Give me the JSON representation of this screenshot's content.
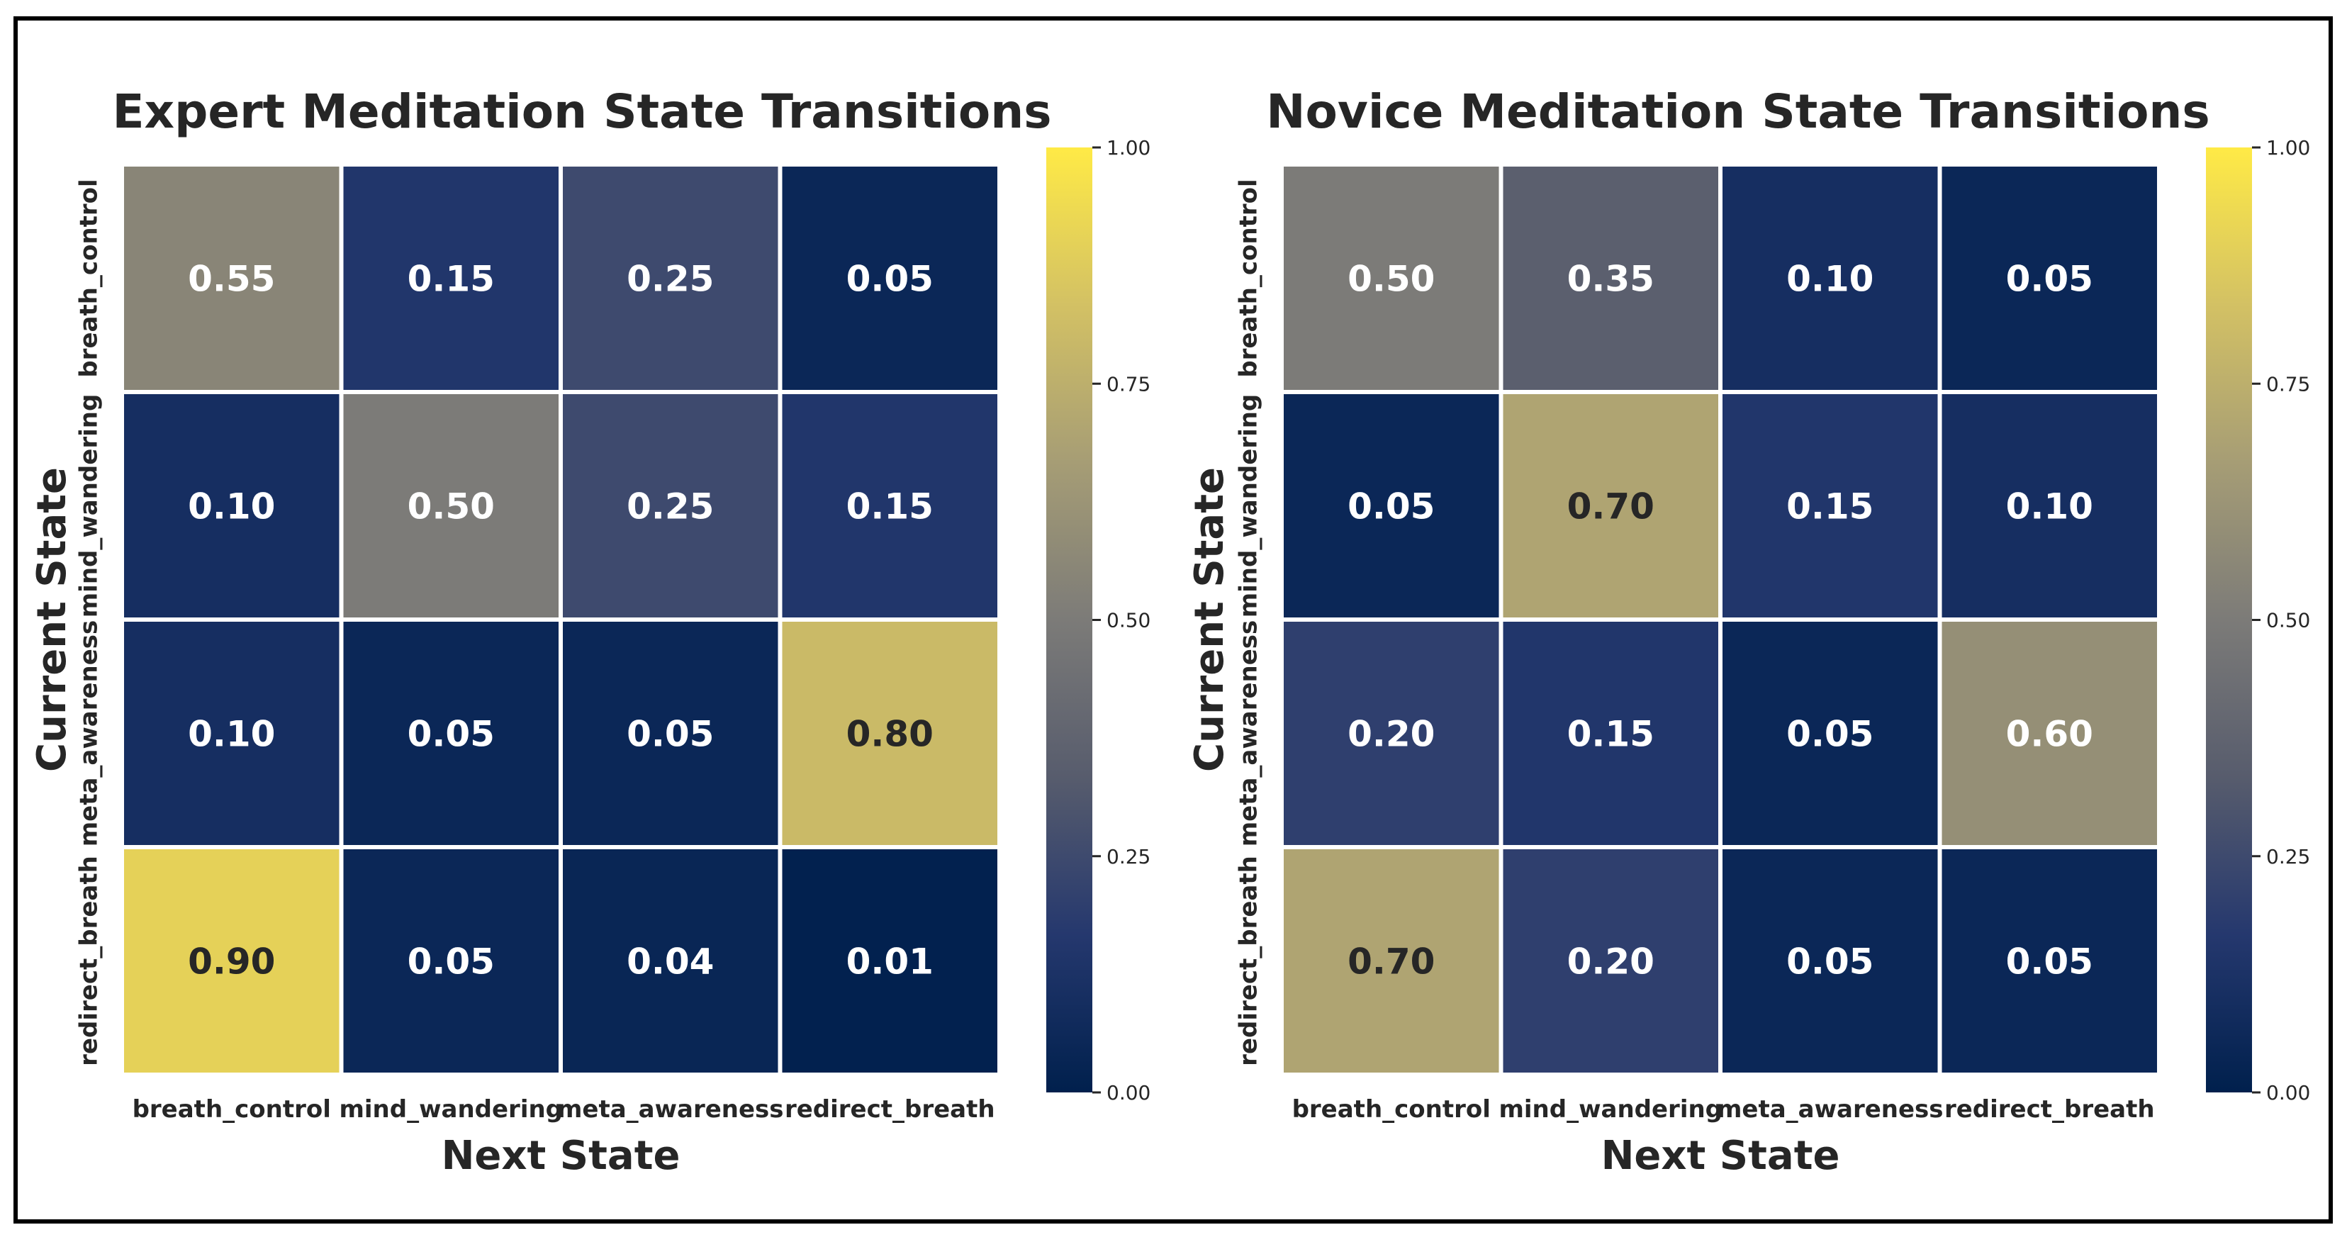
{
  "colors": {
    "border": "#000000",
    "cell_gap": "#ffffff",
    "text_dark": "#262626",
    "text_light": "#ffffff",
    "colormap": [
      "#00204d",
      "#25386e",
      "#575c6d",
      "#7c7b78",
      "#a69d75",
      "#d3c164",
      "#ffea46"
    ]
  },
  "chart_data": [
    {
      "type": "heatmap",
      "title": "Expert Meditation State Transitions",
      "xlabel": "Next State",
      "ylabel": "Current State",
      "x_categories": [
        "breath_control",
        "mind_wandering",
        "meta_awareness",
        "redirect_breath"
      ],
      "y_categories": [
        "breath_control",
        "mind_wandering",
        "meta_awareness",
        "redirect_breath"
      ],
      "values": [
        [
          0.55,
          0.15,
          0.25,
          0.05
        ],
        [
          0.1,
          0.5,
          0.25,
          0.15
        ],
        [
          0.1,
          0.05,
          0.05,
          0.8
        ],
        [
          0.9,
          0.05,
          0.04,
          0.01
        ]
      ],
      "value_labels": [
        [
          "0.55",
          "0.15",
          "0.25",
          "0.05"
        ],
        [
          "0.10",
          "0.50",
          "0.25",
          "0.15"
        ],
        [
          "0.10",
          "0.05",
          "0.05",
          "0.80"
        ],
        [
          "0.90",
          "0.05",
          "0.04",
          "0.01"
        ]
      ],
      "colorbar": {
        "range": [
          0,
          1
        ],
        "ticks": [
          0.0,
          0.25,
          0.5,
          0.75,
          1.0
        ],
        "tick_labels": [
          "0.00",
          "0.25",
          "0.50",
          "0.75",
          "1.00"
        ]
      }
    },
    {
      "type": "heatmap",
      "title": "Novice Meditation State Transitions",
      "xlabel": "Next State",
      "ylabel": "Current State",
      "x_categories": [
        "breath_control",
        "mind_wandering",
        "meta_awareness",
        "redirect_breath"
      ],
      "y_categories": [
        "breath_control",
        "mind_wandering",
        "meta_awareness",
        "redirect_breath"
      ],
      "values": [
        [
          0.5,
          0.35,
          0.1,
          0.05
        ],
        [
          0.05,
          0.7,
          0.15,
          0.1
        ],
        [
          0.2,
          0.15,
          0.05,
          0.6
        ],
        [
          0.7,
          0.2,
          0.05,
          0.05
        ]
      ],
      "value_labels": [
        [
          "0.50",
          "0.35",
          "0.10",
          "0.05"
        ],
        [
          "0.05",
          "0.70",
          "0.15",
          "0.10"
        ],
        [
          "0.20",
          "0.15",
          "0.05",
          "0.60"
        ],
        [
          "0.70",
          "0.20",
          "0.05",
          "0.05"
        ]
      ],
      "colorbar": {
        "range": [
          0,
          1
        ],
        "ticks": [
          0.0,
          0.25,
          0.5,
          0.75,
          1.0
        ],
        "tick_labels": [
          "0.00",
          "0.25",
          "0.50",
          "0.75",
          "1.00"
        ]
      }
    }
  ]
}
